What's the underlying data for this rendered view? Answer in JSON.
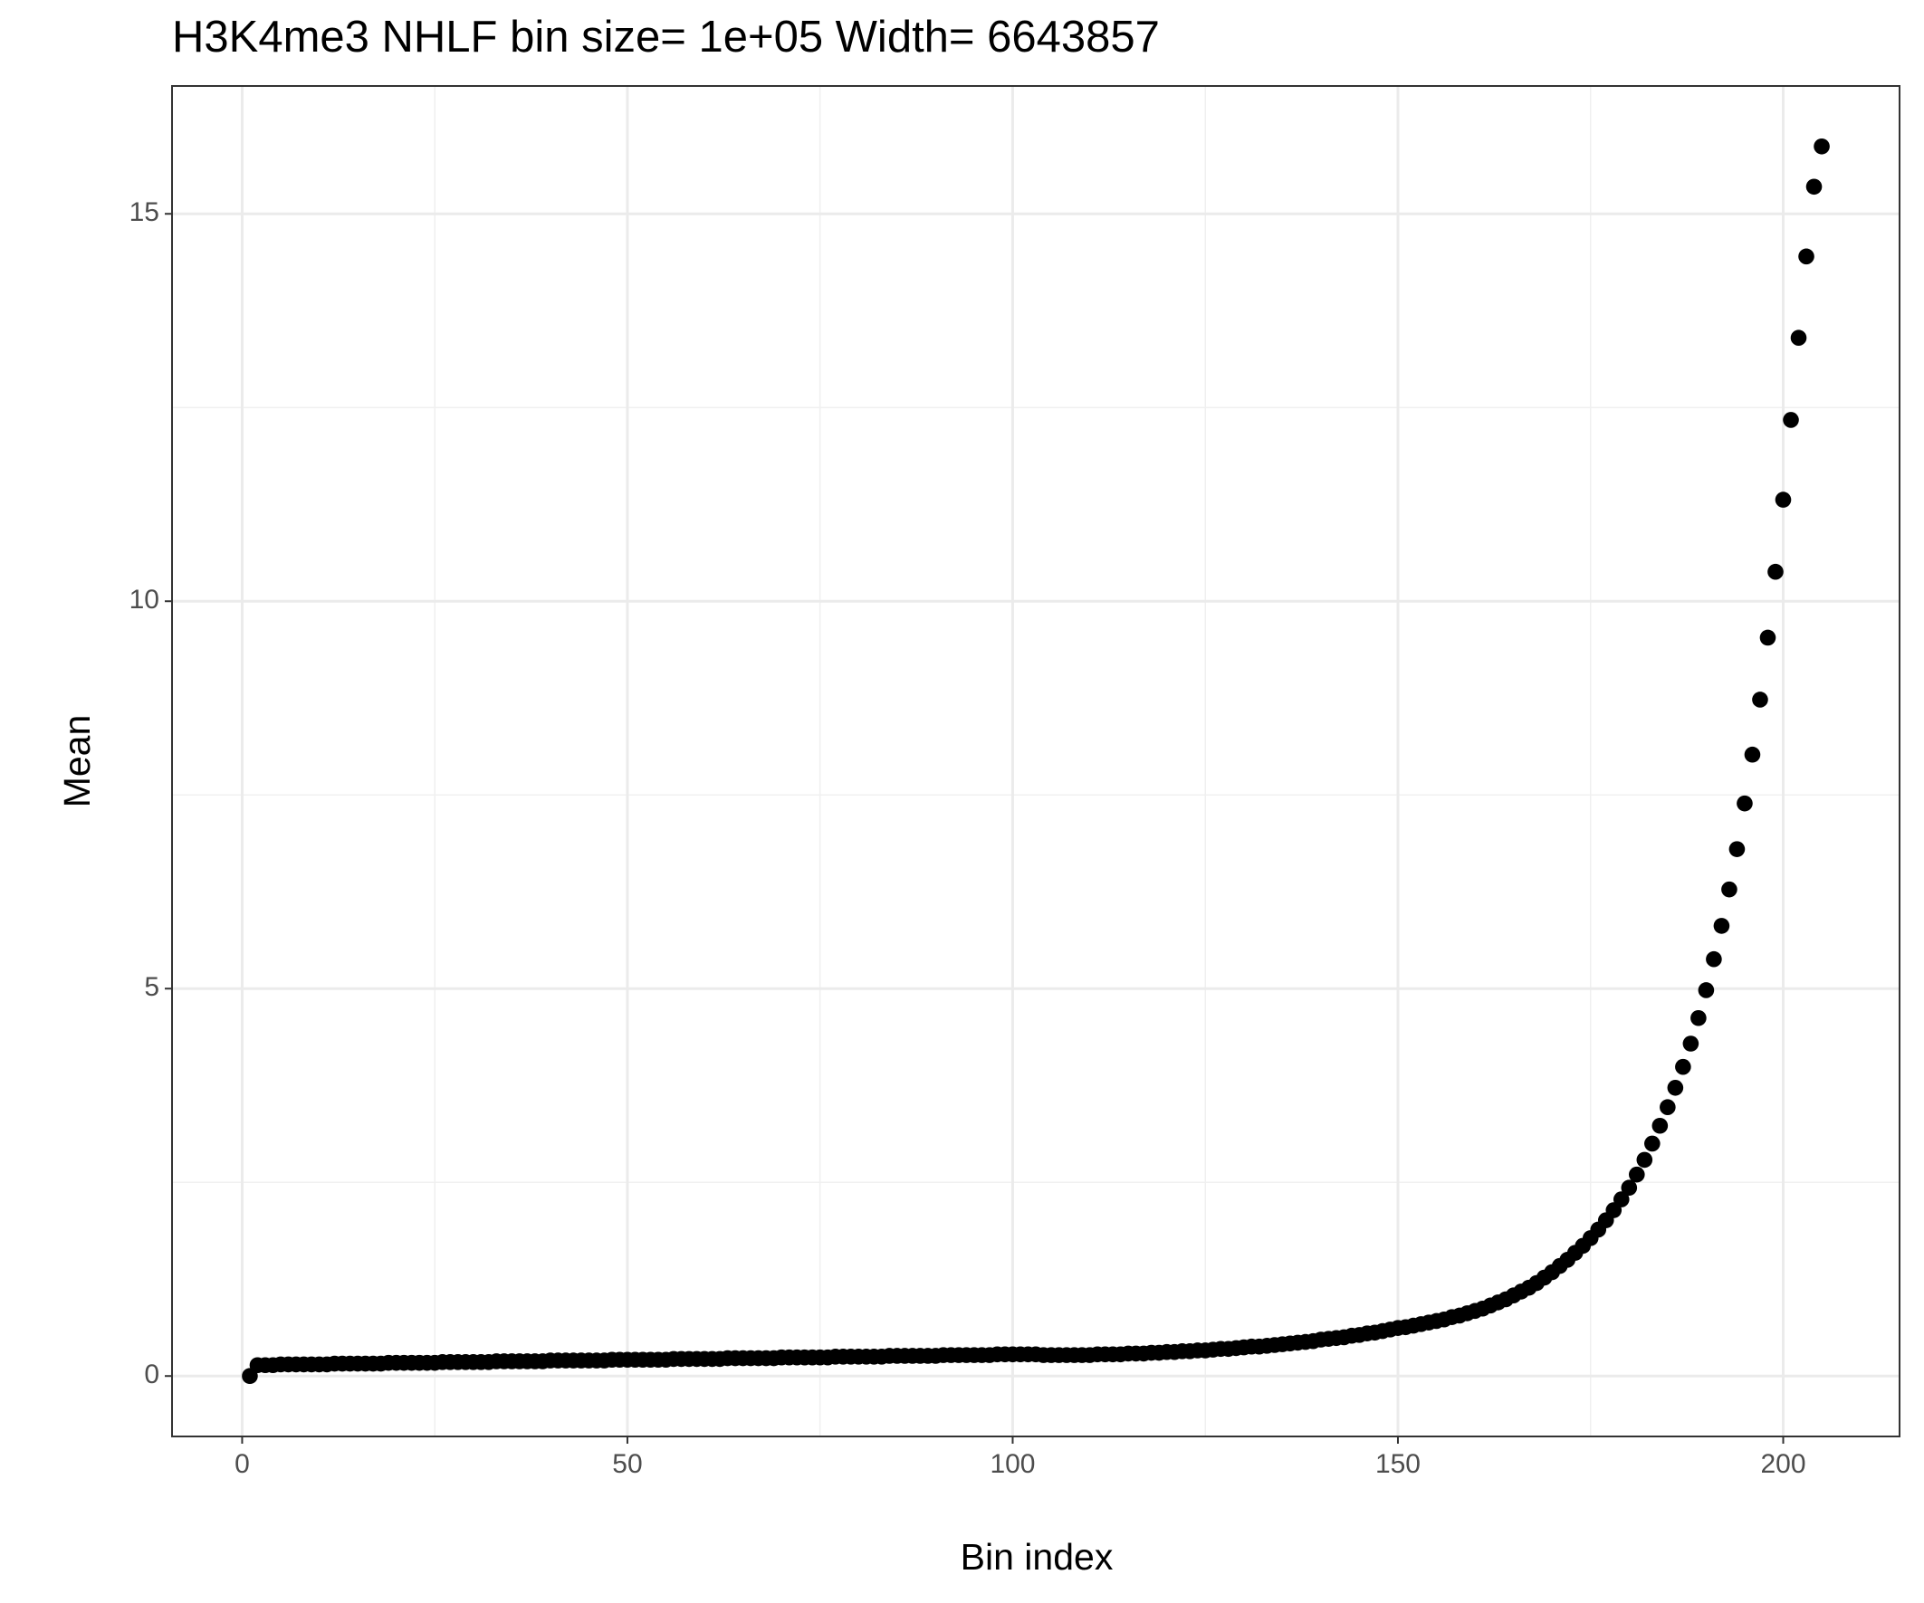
{
  "chart_data": {
    "type": "scatter",
    "title": "H3K4me3 NHLF  bin size=  1e+05  Width=  6643857",
    "x_label": "Bin index",
    "y_label": "Mean",
    "color": "#000000",
    "grid": true,
    "xlim": [
      -9.1,
      215.1
    ],
    "ylim": [
      -0.78,
      16.65
    ],
    "xticks": [
      0,
      50,
      100,
      150,
      200
    ],
    "yticks": [
      0,
      5,
      10,
      15
    ],
    "x_minor_ticks": [
      25,
      75,
      125,
      175
    ],
    "y_minor_ticks": [
      2.5,
      7.5,
      12.5
    ],
    "x": [
      1,
      2,
      3,
      4,
      5,
      6,
      7,
      8,
      9,
      10,
      11,
      12,
      13,
      14,
      15,
      16,
      17,
      18,
      19,
      20,
      21,
      22,
      23,
      24,
      25,
      26,
      27,
      28,
      29,
      30,
      31,
      32,
      33,
      34,
      35,
      36,
      37,
      38,
      39,
      40,
      41,
      42,
      43,
      44,
      45,
      46,
      47,
      48,
      49,
      50,
      51,
      52,
      53,
      54,
      55,
      56,
      57,
      58,
      59,
      60,
      61,
      62,
      63,
      64,
      65,
      66,
      67,
      68,
      69,
      70,
      71,
      72,
      73,
      74,
      75,
      76,
      77,
      78,
      79,
      80,
      81,
      82,
      83,
      84,
      85,
      86,
      87,
      88,
      89,
      90,
      91,
      92,
      93,
      94,
      95,
      96,
      97,
      98,
      99,
      100,
      101,
      102,
      103,
      104,
      105,
      106,
      107,
      108,
      109,
      110,
      111,
      112,
      113,
      114,
      115,
      116,
      117,
      118,
      119,
      120,
      121,
      122,
      123,
      124,
      125,
      126,
      127,
      128,
      129,
      130,
      131,
      132,
      133,
      134,
      135,
      136,
      137,
      138,
      139,
      140,
      141,
      142,
      143,
      144,
      145,
      146,
      147,
      148,
      149,
      150,
      151,
      152,
      153,
      154,
      155,
      156,
      157,
      158,
      159,
      160,
      161,
      162,
      163,
      164,
      165,
      166,
      167,
      168,
      169,
      170,
      171,
      172,
      173,
      174,
      175,
      176,
      177,
      178,
      179,
      180,
      181,
      182,
      183,
      184,
      185,
      186,
      187,
      188,
      189,
      190,
      191,
      192,
      193,
      194,
      195,
      196,
      197,
      198,
      199,
      200,
      201,
      202,
      203,
      204,
      205
    ],
    "values": [
      0,
      0.14,
      0.14,
      0.14,
      0.15,
      0.15,
      0.15,
      0.15,
      0.15,
      0.15,
      0.15,
      0.16,
      0.16,
      0.16,
      0.16,
      0.16,
      0.16,
      0.16,
      0.17,
      0.17,
      0.17,
      0.17,
      0.17,
      0.17,
      0.17,
      0.18,
      0.18,
      0.18,
      0.18,
      0.18,
      0.18,
      0.18,
      0.19,
      0.19,
      0.19,
      0.19,
      0.19,
      0.19,
      0.19,
      0.2,
      0.2,
      0.2,
      0.2,
      0.2,
      0.2,
      0.2,
      0.2,
      0.21,
      0.21,
      0.21,
      0.21,
      0.21,
      0.21,
      0.21,
      0.21,
      0.22,
      0.22,
      0.22,
      0.22,
      0.22,
      0.22,
      0.22,
      0.23,
      0.23,
      0.23,
      0.23,
      0.23,
      0.23,
      0.23,
      0.24,
      0.24,
      0.24,
      0.24,
      0.24,
      0.24,
      0.24,
      0.25,
      0.25,
      0.25,
      0.25,
      0.25,
      0.25,
      0.25,
      0.26,
      0.26,
      0.26,
      0.26,
      0.26,
      0.26,
      0.26,
      0.27,
      0.27,
      0.27,
      0.27,
      0.27,
      0.27,
      0.27,
      0.28,
      0.28,
      0.28,
      0.28,
      0.28,
      0.28,
      0.27,
      0.27,
      0.27,
      0.27,
      0.27,
      0.27,
      0.27,
      0.28,
      0.28,
      0.28,
      0.28,
      0.29,
      0.29,
      0.29,
      0.3,
      0.3,
      0.31,
      0.31,
      0.32,
      0.32,
      0.33,
      0.33,
      0.34,
      0.35,
      0.35,
      0.36,
      0.37,
      0.38,
      0.38,
      0.39,
      0.4,
      0.41,
      0.42,
      0.43,
      0.44,
      0.45,
      0.47,
      0.48,
      0.49,
      0.5,
      0.52,
      0.53,
      0.55,
      0.56,
      0.58,
      0.6,
      0.62,
      0.63,
      0.65,
      0.67,
      0.69,
      0.71,
      0.73,
      0.76,
      0.78,
      0.81,
      0.84,
      0.87,
      0.91,
      0.95,
      0.99,
      1.04,
      1.09,
      1.14,
      1.2,
      1.27,
      1.34,
      1.42,
      1.5,
      1.59,
      1.68,
      1.78,
      1.89,
      2.01,
      2.14,
      2.28,
      2.43,
      2.6,
      2.79,
      3.0,
      3.23,
      3.47,
      3.72,
      3.99,
      4.29,
      4.62,
      4.98,
      5.38,
      5.81,
      6.28,
      6.8,
      7.39,
      8.02,
      8.73,
      9.53,
      10.38,
      11.31,
      12.34,
      13.4,
      14.45,
      15.35,
      15.87
    ]
  }
}
